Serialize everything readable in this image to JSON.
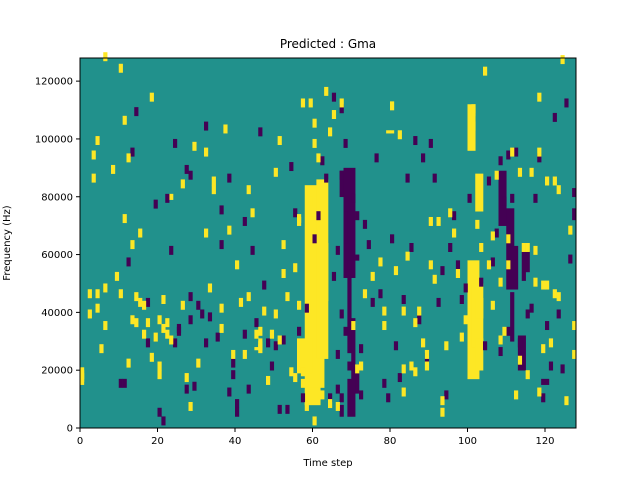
{
  "chart_data": {
    "type": "heatmap",
    "title": "Predicted : Gma",
    "xlabel": "Time step",
    "ylabel": "Frequency (Hz)",
    "xlim": [
      0,
      128
    ],
    "ylim": [
      0,
      128000
    ],
    "xticks": [
      0,
      20,
      40,
      60,
      80,
      100,
      120
    ],
    "yticks": [
      0,
      20000,
      40000,
      60000,
      80000,
      100000,
      120000
    ],
    "xtick_labels": [
      "0",
      "20",
      "40",
      "60",
      "80",
      "100",
      "120"
    ],
    "ytick_labels": [
      "0",
      "20000",
      "40000",
      "60000",
      "80000",
      "100000",
      "120000"
    ],
    "grid": false,
    "legend": "none",
    "colormap": "viridis",
    "colors": {
      "background": "#21918c",
      "high": "#fde725",
      "low": "#440154"
    },
    "n_time_steps": 128,
    "n_freq_bins": 128,
    "freq_bin_hz": 1000,
    "description_note": "",
    "high_cells": [
      [
        0,
        15
      ],
      [
        0,
        16
      ],
      [
        0,
        17
      ],
      [
        0,
        18
      ],
      [
        2,
        38
      ],
      [
        2,
        45
      ],
      [
        3,
        85
      ],
      [
        3,
        93
      ],
      [
        4,
        98
      ],
      [
        4,
        45
      ],
      [
        4,
        40
      ],
      [
        5,
        26
      ],
      [
        6,
        34
      ],
      [
        6,
        47
      ],
      [
        6,
        127
      ],
      [
        8,
        88
      ],
      [
        9,
        51
      ],
      [
        10,
        45
      ],
      [
        10,
        123
      ],
      [
        11,
        105
      ],
      [
        11,
        71
      ],
      [
        12,
        92
      ],
      [
        12,
        21
      ],
      [
        13,
        62
      ],
      [
        13,
        36
      ],
      [
        14,
        44
      ],
      [
        14,
        35
      ],
      [
        15,
        66
      ],
      [
        15,
        42
      ],
      [
        16,
        31
      ],
      [
        16,
        41
      ],
      [
        17,
        35
      ],
      [
        18,
        23
      ],
      [
        18,
        113
      ],
      [
        19,
        30
      ],
      [
        20,
        36
      ],
      [
        20,
        20
      ],
      [
        20,
        17
      ],
      [
        21,
        43
      ],
      [
        21,
        33
      ],
      [
        22,
        35
      ],
      [
        22,
        31
      ],
      [
        23,
        29
      ],
      [
        26,
        83
      ],
      [
        26,
        41
      ],
      [
        27,
        16
      ],
      [
        28,
        6
      ],
      [
        29,
        96
      ],
      [
        30,
        21
      ],
      [
        32,
        94
      ],
      [
        32,
        66
      ],
      [
        33,
        47
      ],
      [
        34,
        84
      ],
      [
        34,
        81
      ],
      [
        36,
        40
      ],
      [
        36,
        33
      ],
      [
        37,
        102
      ],
      [
        38,
        67
      ],
      [
        39,
        24
      ],
      [
        40,
        55
      ],
      [
        41,
        42
      ],
      [
        42,
        24
      ],
      [
        43,
        81
      ],
      [
        43,
        44
      ],
      [
        44,
        73
      ],
      [
        45,
        31
      ],
      [
        46,
        32
      ],
      [
        46,
        26
      ],
      [
        46,
        27
      ],
      [
        46,
        28
      ],
      [
        47,
        39
      ],
      [
        48,
        15
      ],
      [
        49,
        31
      ],
      [
        50,
        38
      ],
      [
        50,
        87
      ],
      [
        51,
        98
      ],
      [
        51,
        29
      ],
      [
        52,
        62
      ],
      [
        52,
        52
      ],
      [
        53,
        44
      ],
      [
        54,
        18
      ],
      [
        55,
        54
      ],
      [
        55,
        16
      ],
      [
        56,
        41
      ],
      [
        56,
        71
      ],
      [
        57,
        18
      ],
      [
        57,
        14
      ],
      [
        57,
        111
      ],
      [
        58,
        6
      ],
      [
        59,
        77
      ],
      [
        59,
        111
      ],
      [
        60,
        97
      ],
      [
        60,
        104
      ],
      [
        60,
        1
      ],
      [
        61,
        92
      ],
      [
        62,
        10
      ],
      [
        63,
        115
      ],
      [
        64,
        101
      ],
      [
        64,
        7
      ],
      [
        65,
        107
      ],
      [
        66,
        6
      ],
      [
        67,
        111
      ],
      [
        70,
        34
      ],
      [
        71,
        19
      ],
      [
        72,
        20
      ],
      [
        73,
        45
      ],
      [
        75,
        51
      ],
      [
        77,
        56
      ],
      [
        78,
        39
      ],
      [
        78,
        34
      ],
      [
        80,
        110
      ],
      [
        81,
        53
      ],
      [
        82,
        100
      ],
      [
        83,
        39
      ],
      [
        83,
        11
      ],
      [
        83,
        19
      ],
      [
        84,
        58
      ],
      [
        85,
        20
      ],
      [
        86,
        18
      ],
      [
        86,
        35
      ],
      [
        87,
        39
      ],
      [
        88,
        28
      ],
      [
        89,
        20
      ],
      [
        89,
        24
      ],
      [
        90,
        70
      ],
      [
        90,
        55
      ],
      [
        91,
        50
      ],
      [
        92,
        70
      ],
      [
        93,
        4
      ],
      [
        93,
        8
      ],
      [
        94,
        27
      ],
      [
        95,
        73
      ],
      [
        96,
        66
      ],
      [
        97,
        52
      ],
      [
        98,
        30
      ],
      [
        99,
        36
      ],
      [
        101,
        103
      ],
      [
        101,
        109
      ],
      [
        101,
        108
      ],
      [
        102,
        69
      ],
      [
        103,
        61
      ],
      [
        104,
        122
      ],
      [
        105,
        55
      ],
      [
        106,
        65
      ],
      [
        106,
        41
      ],
      [
        107,
        86
      ],
      [
        108,
        29
      ],
      [
        108,
        49
      ],
      [
        109,
        32
      ],
      [
        110,
        55
      ],
      [
        110,
        64
      ],
      [
        111,
        94
      ],
      [
        112,
        10
      ],
      [
        113,
        22
      ],
      [
        113,
        87
      ],
      [
        114,
        61
      ],
      [
        115,
        17
      ],
      [
        115,
        61
      ],
      [
        116,
        87
      ],
      [
        117,
        60
      ],
      [
        117,
        49
      ],
      [
        118,
        11
      ],
      [
        118,
        113
      ],
      [
        118,
        94
      ],
      [
        119,
        48
      ],
      [
        119,
        26
      ],
      [
        120,
        48
      ],
      [
        120,
        84
      ],
      [
        121,
        28
      ],
      [
        122,
        84
      ],
      [
        122,
        45
      ],
      [
        123,
        81
      ],
      [
        123,
        44
      ],
      [
        124,
        126
      ],
      [
        125,
        8
      ],
      [
        126,
        67
      ],
      [
        127,
        34
      ],
      [
        127,
        24
      ]
    ],
    "high_blocks": [
      [
        58,
        62,
        8,
        84
      ],
      [
        59,
        63,
        14,
        73
      ],
      [
        61,
        64,
        24,
        86
      ],
      [
        63,
        64,
        44,
        64
      ],
      [
        100,
        103,
        17,
        58
      ],
      [
        101,
        104,
        28,
        50
      ],
      [
        102,
        104,
        75,
        88
      ],
      [
        102,
        104,
        38,
        45
      ],
      [
        56,
        57,
        70,
        73
      ],
      [
        56,
        60,
        19,
        31
      ],
      [
        102,
        104,
        20,
        31
      ],
      [
        100,
        102,
        96,
        112
      ],
      [
        45,
        47,
        27,
        28
      ],
      [
        79,
        80,
        103,
        102
      ],
      [
        80,
        81,
        103,
        102
      ],
      [
        23,
        23,
        79,
        81
      ]
    ],
    "low_cells": [
      [
        4,
        98
      ],
      [
        10,
        14
      ],
      [
        11,
        14
      ],
      [
        12,
        56
      ],
      [
        13,
        94
      ],
      [
        14,
        108
      ],
      [
        17,
        42
      ],
      [
        17,
        28
      ],
      [
        19,
        76
      ],
      [
        20,
        4
      ],
      [
        21,
        1
      ],
      [
        22,
        78
      ],
      [
        23,
        60
      ],
      [
        24,
        28
      ],
      [
        24,
        97
      ],
      [
        25,
        32
      ],
      [
        25,
        33
      ],
      [
        27,
        88
      ],
      [
        27,
        12
      ],
      [
        28,
        86
      ],
      [
        28,
        44
      ],
      [
        28,
        36
      ],
      [
        29,
        13
      ],
      [
        30,
        41
      ],
      [
        31,
        38
      ],
      [
        32,
        103
      ],
      [
        32,
        28
      ],
      [
        33,
        37
      ],
      [
        35,
        30
      ],
      [
        36,
        74
      ],
      [
        36,
        62
      ],
      [
        38,
        85
      ],
      [
        38,
        11
      ],
      [
        39,
        21
      ],
      [
        39,
        17
      ],
      [
        40,
        7
      ],
      [
        40,
        4
      ],
      [
        42,
        70
      ],
      [
        42,
        31
      ],
      [
        43,
        12
      ],
      [
        44,
        60
      ],
      [
        45,
        35
      ],
      [
        46,
        101
      ],
      [
        47,
        48
      ],
      [
        48,
        28
      ],
      [
        49,
        20
      ],
      [
        50,
        27
      ],
      [
        51,
        5
      ],
      [
        52,
        29
      ],
      [
        53,
        5
      ],
      [
        54,
        89
      ],
      [
        55,
        73
      ],
      [
        56,
        32
      ],
      [
        57,
        9
      ],
      [
        58,
        40
      ],
      [
        60,
        64
      ],
      [
        61,
        72
      ],
      [
        62,
        91
      ],
      [
        63,
        85
      ],
      [
        64,
        9
      ],
      [
        65,
        51
      ],
      [
        65,
        113
      ],
      [
        66,
        12
      ],
      [
        66,
        24
      ],
      [
        66,
        60
      ],
      [
        67,
        109
      ],
      [
        67,
        86
      ],
      [
        67,
        38
      ],
      [
        67,
        9
      ],
      [
        68,
        97
      ],
      [
        68,
        32
      ],
      [
        69,
        20
      ],
      [
        69,
        55
      ],
      [
        70,
        78
      ],
      [
        71,
        72
      ],
      [
        72,
        10
      ],
      [
        73,
        69
      ],
      [
        74,
        62
      ],
      [
        75,
        42
      ],
      [
        76,
        92
      ],
      [
        77,
        45
      ],
      [
        78,
        14
      ],
      [
        79,
        9
      ],
      [
        80,
        64
      ],
      [
        81,
        27
      ],
      [
        82,
        16
      ],
      [
        83,
        43
      ],
      [
        84,
        85
      ],
      [
        85,
        61
      ],
      [
        86,
        98
      ],
      [
        87,
        36
      ],
      [
        88,
        92
      ],
      [
        89,
        23
      ],
      [
        90,
        97
      ],
      [
        91,
        85
      ],
      [
        92,
        42
      ],
      [
        93,
        53
      ],
      [
        94,
        10
      ],
      [
        95,
        61
      ],
      [
        96,
        72
      ],
      [
        97,
        55
      ],
      [
        98,
        43
      ],
      [
        99,
        47
      ],
      [
        100,
        78
      ],
      [
        103,
        49
      ],
      [
        104,
        27
      ],
      [
        105,
        84
      ],
      [
        106,
        56
      ],
      [
        107,
        66
      ],
      [
        108,
        25
      ],
      [
        108,
        91
      ],
      [
        109,
        77
      ],
      [
        110,
        32
      ],
      [
        110,
        93
      ],
      [
        111,
        78
      ],
      [
        112,
        94
      ],
      [
        113,
        28
      ],
      [
        114,
        51
      ],
      [
        115,
        38
      ],
      [
        116,
        40
      ],
      [
        117,
        78
      ],
      [
        118,
        92
      ],
      [
        119,
        9
      ],
      [
        120,
        34
      ],
      [
        121,
        20
      ],
      [
        122,
        106
      ],
      [
        123,
        38
      ],
      [
        124,
        19
      ],
      [
        125,
        111
      ],
      [
        126,
        57
      ],
      [
        127,
        80
      ]
    ],
    "low_blocks": [
      [
        68,
        71,
        52,
        90
      ],
      [
        69,
        70,
        26,
        52
      ],
      [
        70,
        71,
        22,
        38
      ],
      [
        70,
        72,
        12,
        22
      ],
      [
        68,
        69,
        64,
        75
      ],
      [
        67,
        68,
        80,
        89
      ],
      [
        69,
        71,
        4,
        17
      ],
      [
        71,
        72,
        58,
        60
      ],
      [
        72,
        73,
        26,
        29
      ],
      [
        67,
        68,
        4,
        8
      ],
      [
        110,
        113,
        48,
        63
      ],
      [
        111,
        112,
        30,
        47
      ],
      [
        108,
        110,
        70,
        89
      ],
      [
        110,
        112,
        63,
        76
      ],
      [
        113,
        115,
        20,
        32
      ],
      [
        114,
        116,
        54,
        61
      ],
      [
        119,
        121,
        15,
        17
      ],
      [
        127,
        128,
        72,
        76
      ]
    ]
  }
}
